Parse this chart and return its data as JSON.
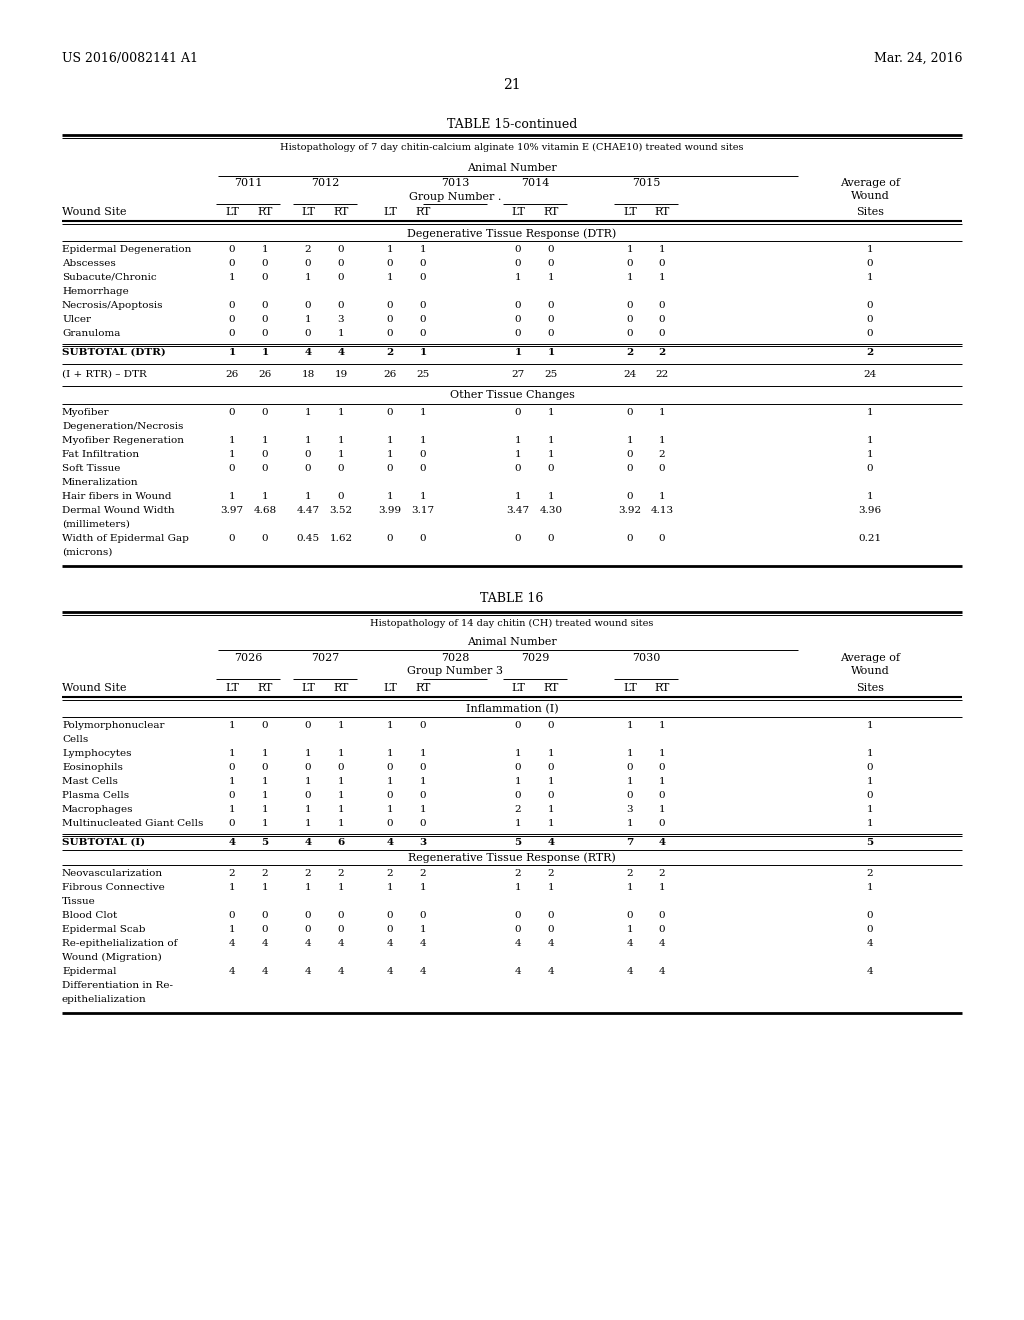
{
  "header_left": "US 2016/0082141 A1",
  "header_right": "Mar. 24, 2016",
  "page_number": "21",
  "table15_title": "TABLE 15-continued",
  "table15_subtitle": "Histopathology of 7 day chitin-calcium alginate 10% vitamin E (CHAE10) treated wound sites",
  "table15_animals": [
    "7011",
    "7012",
    "7013",
    "7014",
    "7015"
  ],
  "table15_group": "Group Number .",
  "table15_dtr_header": "Degenerative Tissue Response (DTR)",
  "table15_dtr_rows": [
    [
      "Epidermal Degeneration",
      "0",
      "1",
      "2",
      "0",
      "1",
      "1",
      "0",
      "0",
      "1",
      "1",
      "1"
    ],
    [
      "Abscesses",
      "0",
      "0",
      "0",
      "0",
      "0",
      "0",
      "0",
      "0",
      "0",
      "0",
      "0"
    ],
    [
      "Subacute/Chronic",
      "1",
      "0",
      "1",
      "0",
      "1",
      "0",
      "1",
      "1",
      "1",
      "1",
      "1"
    ],
    [
      "Hemorrhage",
      "",
      "",
      "",
      "",
      "",
      "",
      "",
      "",
      "",
      "",
      ""
    ],
    [
      "Necrosis/Apoptosis",
      "0",
      "0",
      "0",
      "0",
      "0",
      "0",
      "0",
      "0",
      "0",
      "0",
      "0"
    ],
    [
      "Ulcer",
      "0",
      "0",
      "1",
      "3",
      "0",
      "0",
      "0",
      "0",
      "0",
      "0",
      "0"
    ],
    [
      "Granuloma",
      "0",
      "0",
      "0",
      "1",
      "0",
      "0",
      "0",
      "0",
      "0",
      "0",
      "0"
    ]
  ],
  "table15_subtotal_dtr": [
    "SUBTOTAL (DTR)",
    "1",
    "1",
    "4",
    "4",
    "2",
    "1",
    "1",
    "1",
    "2",
    "2",
    "2"
  ],
  "table15_irtr_dtr": [
    "(I + RTR) – DTR",
    "26",
    "26",
    "18",
    "19",
    "26",
    "25",
    "27",
    "25",
    "24",
    "22",
    "24"
  ],
  "table15_otc_header": "Other Tissue Changes",
  "table15_otc_rows": [
    [
      "Myofiber",
      "0",
      "0",
      "1",
      "1",
      "0",
      "1",
      "0",
      "1",
      "0",
      "1",
      "1"
    ],
    [
      "Degeneration/Necrosis",
      "",
      "",
      "",
      "",
      "",
      "",
      "",
      "",
      "",
      "",
      ""
    ],
    [
      "Myofiber Regeneration",
      "1",
      "1",
      "1",
      "1",
      "1",
      "1",
      "1",
      "1",
      "1",
      "1",
      "1"
    ],
    [
      "Fat Infiltration",
      "1",
      "0",
      "0",
      "1",
      "1",
      "0",
      "1",
      "1",
      "0",
      "2",
      "1"
    ],
    [
      "Soft Tissue",
      "0",
      "0",
      "0",
      "0",
      "0",
      "0",
      "0",
      "0",
      "0",
      "0",
      "0"
    ],
    [
      "Mineralization",
      "",
      "",
      "",
      "",
      "",
      "",
      "",
      "",
      "",
      "",
      ""
    ],
    [
      "Hair fibers in Wound",
      "1",
      "1",
      "1",
      "0",
      "1",
      "1",
      "1",
      "1",
      "0",
      "1",
      "1"
    ],
    [
      "Dermal Wound Width",
      "3.97",
      "4.68",
      "4.47",
      "3.52",
      "3.99",
      "3.17",
      "3.47",
      "4.30",
      "3.92",
      "4.13",
      "3.96"
    ],
    [
      "(millimeters)",
      "",
      "",
      "",
      "",
      "",
      "",
      "",
      "",
      "",
      "",
      ""
    ],
    [
      "Width of Epidermal Gap",
      "0",
      "0",
      "0.45",
      "1.62",
      "0",
      "0",
      "0",
      "0",
      "0",
      "0",
      "0.21"
    ],
    [
      "(microns)",
      "",
      "",
      "",
      "",
      "",
      "",
      "",
      "",
      "",
      "",
      ""
    ]
  ],
  "table16_title": "TABLE 16",
  "table16_subtitle": "Histopathology of 14 day chitin (CH) treated wound sites",
  "table16_animals": [
    "7026",
    "7027",
    "7028",
    "7029",
    "7030"
  ],
  "table16_group": "Group Number 3",
  "table16_inf_header": "Inflammation (I)",
  "table16_inf_rows": [
    [
      "Polymorphonuclear",
      "1",
      "0",
      "0",
      "1",
      "1",
      "0",
      "0",
      "0",
      "1",
      "1",
      "1"
    ],
    [
      "Cells",
      "",
      "",
      "",
      "",
      "",
      "",
      "",
      "",
      "",
      "",
      ""
    ],
    [
      "Lymphocytes",
      "1",
      "1",
      "1",
      "1",
      "1",
      "1",
      "1",
      "1",
      "1",
      "1",
      "1"
    ],
    [
      "Eosinophils",
      "0",
      "0",
      "0",
      "0",
      "0",
      "0",
      "0",
      "0",
      "0",
      "0",
      "0"
    ],
    [
      "Mast Cells",
      "1",
      "1",
      "1",
      "1",
      "1",
      "1",
      "1",
      "1",
      "1",
      "1",
      "1"
    ],
    [
      "Plasma Cells",
      "0",
      "1",
      "0",
      "1",
      "0",
      "0",
      "0",
      "0",
      "0",
      "0",
      "0"
    ],
    [
      "Macrophages",
      "1",
      "1",
      "1",
      "1",
      "1",
      "1",
      "2",
      "1",
      "3",
      "1",
      "1"
    ],
    [
      "Multinucleated Giant Cells",
      "0",
      "1",
      "1",
      "1",
      "0",
      "0",
      "1",
      "1",
      "1",
      "0",
      "1"
    ]
  ],
  "table16_subtotal_i": [
    "SUBTOTAL (I)",
    "4",
    "5",
    "4",
    "6",
    "4",
    "3",
    "5",
    "4",
    "7",
    "4",
    "5"
  ],
  "table16_rtr_header": "Regenerative Tissue Response (RTR)",
  "table16_rtr_rows": [
    [
      "Neovascularization",
      "2",
      "2",
      "2",
      "2",
      "2",
      "2",
      "2",
      "2",
      "2",
      "2",
      "2"
    ],
    [
      "Fibrous Connective",
      "1",
      "1",
      "1",
      "1",
      "1",
      "1",
      "1",
      "1",
      "1",
      "1",
      "1"
    ],
    [
      "Tissue",
      "",
      "",
      "",
      "",
      "",
      "",
      "",
      "",
      "",
      "",
      ""
    ],
    [
      "Blood Clot",
      "0",
      "0",
      "0",
      "0",
      "0",
      "0",
      "0",
      "0",
      "0",
      "0",
      "0"
    ],
    [
      "Epidermal Scab",
      "1",
      "0",
      "0",
      "0",
      "0",
      "1",
      "0",
      "0",
      "1",
      "0",
      "0"
    ],
    [
      "Re-epithelialization of",
      "4",
      "4",
      "4",
      "4",
      "4",
      "4",
      "4",
      "4",
      "4",
      "4",
      "4"
    ],
    [
      "Wound (Migration)",
      "",
      "",
      "",
      "",
      "",
      "",
      "",
      "",
      "",
      "",
      ""
    ],
    [
      "Epidermal",
      "4",
      "4",
      "4",
      "4",
      "4",
      "4",
      "4",
      "4",
      "4",
      "4",
      "4"
    ],
    [
      "Differentiation in Re-",
      "",
      "",
      "",
      "",
      "",
      "",
      "",
      "",
      "",
      "",
      ""
    ],
    [
      "epithelialization",
      "",
      "",
      "",
      "",
      "",
      "",
      "",
      "",
      "",
      "",
      ""
    ]
  ]
}
